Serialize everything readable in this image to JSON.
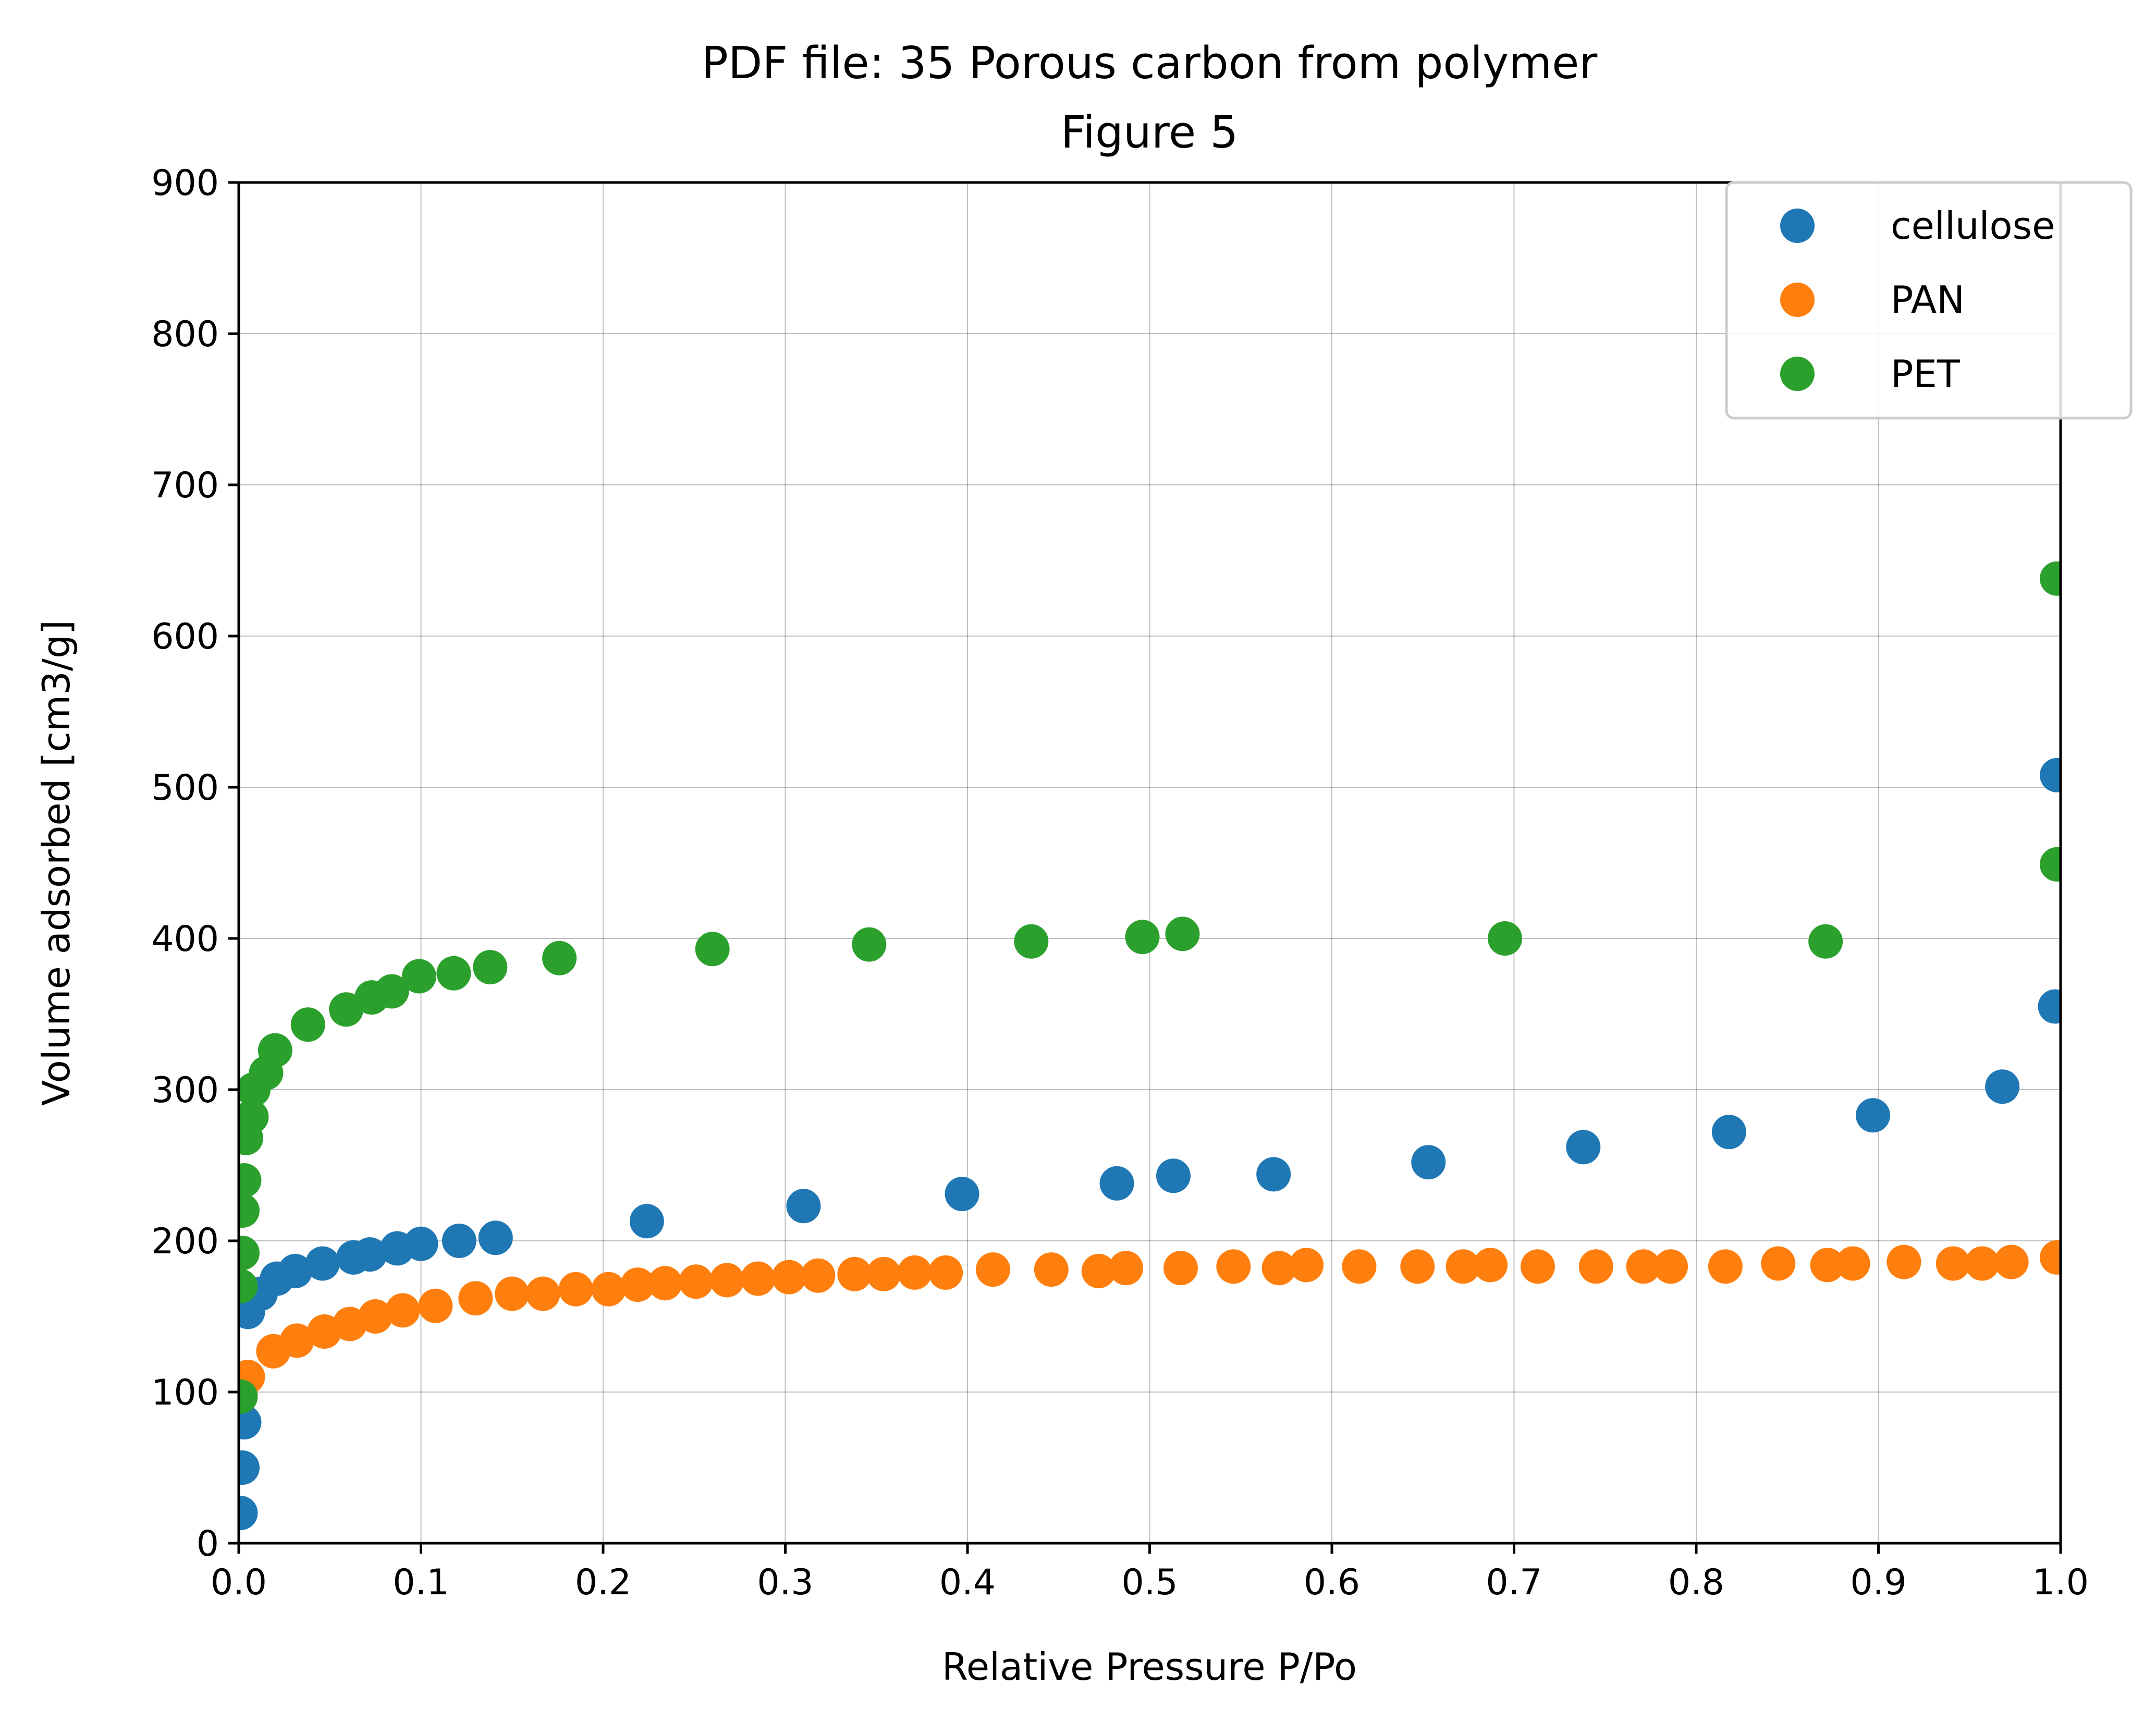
{
  "chart_data": {
    "type": "scatter",
    "title": "PDF file: 35 Porous carbon from polymer",
    "subtitle": "Figure 5",
    "xlabel": "Relative Pressure P/Po",
    "ylabel": "Volume adsorbed [cm3/g]",
    "xlim": [
      0,
      1
    ],
    "ylim": [
      0,
      900
    ],
    "xticks": [
      "0.0",
      "0.1",
      "0.2",
      "0.3",
      "0.4",
      "0.5",
      "0.6",
      "0.7",
      "0.8",
      "0.9",
      "1.0"
    ],
    "yticks": [
      "0",
      "100",
      "200",
      "300",
      "400",
      "500",
      "600",
      "700",
      "800",
      "900"
    ],
    "grid": true,
    "legend_position": "top-right",
    "series": [
      {
        "name": "cellulose",
        "color": "#1f77b4",
        "x": [
          0.001,
          0.002,
          0.003,
          0.005,
          0.012,
          0.021,
          0.031,
          0.046,
          0.063,
          0.072,
          0.087,
          0.1,
          0.121,
          0.141,
          0.224,
          0.31,
          0.397,
          0.482,
          0.513,
          0.568,
          0.653,
          0.738,
          0.818,
          0.897,
          0.968,
          0.997,
          0.998
        ],
        "y": [
          20,
          50,
          80,
          153,
          165,
          175,
          180,
          185,
          189,
          191,
          195,
          198,
          200,
          202,
          213,
          223,
          231,
          238,
          243,
          244,
          252,
          262,
          272,
          283,
          302,
          355,
          508
        ]
      },
      {
        "name": "PAN",
        "color": "#ff7f0e",
        "x": [
          0.001,
          0.005,
          0.019,
          0.032,
          0.047,
          0.061,
          0.075,
          0.09,
          0.108,
          0.13,
          0.15,
          0.167,
          0.185,
          0.203,
          0.219,
          0.234,
          0.251,
          0.268,
          0.285,
          0.302,
          0.318,
          0.338,
          0.354,
          0.371,
          0.388,
          0.414,
          0.446,
          0.472,
          0.487,
          0.517,
          0.546,
          0.571,
          0.586,
          0.615,
          0.647,
          0.672,
          0.687,
          0.713,
          0.745,
          0.771,
          0.786,
          0.816,
          0.845,
          0.872,
          0.886,
          0.914,
          0.941,
          0.957,
          0.973,
          0.998
        ],
        "y": [
          98,
          110,
          127,
          134,
          140,
          145,
          150,
          154,
          157,
          162,
          165,
          165,
          168,
          168,
          171,
          172,
          173,
          174,
          175,
          176,
          177,
          178,
          178,
          179,
          179,
          181,
          181,
          180,
          182,
          182,
          183,
          182,
          184,
          183,
          183,
          183,
          184,
          183,
          183,
          183,
          183,
          183,
          185,
          184,
          185,
          186,
          185,
          185,
          186,
          189
        ]
      },
      {
        "name": "PET",
        "color": "#2ca02c",
        "x": [
          0.001,
          0.001,
          0.002,
          0.002,
          0.003,
          0.004,
          0.007,
          0.008,
          0.015,
          0.02,
          0.038,
          0.059,
          0.073,
          0.084,
          0.099,
          0.118,
          0.138,
          0.176,
          0.26,
          0.346,
          0.435,
          0.496,
          0.518,
          0.695,
          0.871,
          0.998,
          0.998
        ],
        "y": [
          97,
          170,
          192,
          220,
          240,
          268,
          282,
          300,
          311,
          326,
          343,
          353,
          361,
          365,
          375,
          377,
          381,
          387,
          393,
          396,
          398,
          401,
          403,
          400,
          398,
          449,
          638
        ]
      }
    ]
  }
}
